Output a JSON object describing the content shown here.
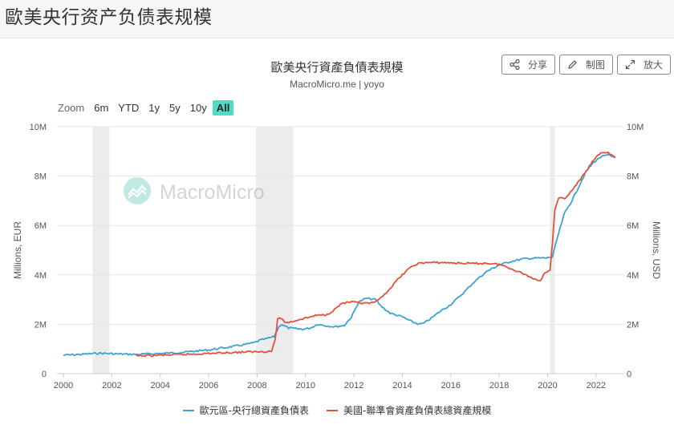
{
  "page": {
    "title": "歐美央行资产负债表规模"
  },
  "toolbar": {
    "share_label": "分享",
    "draw_label": "制图",
    "zoom_label": "放大"
  },
  "zoom": {
    "label": "Zoom",
    "options": [
      "6m",
      "YTD",
      "1y",
      "5y",
      "10y",
      "All"
    ],
    "active": "All"
  },
  "watermark": {
    "text": "MacroMicro"
  },
  "chart_data": {
    "type": "line",
    "title": "歐美央行資產負債表規模",
    "subtitle": "MacroMicro.me | yoyo",
    "x_range": [
      2000,
      2022.9
    ],
    "x_ticks": [
      2000,
      2002,
      2004,
      2006,
      2008,
      2010,
      2012,
      2014,
      2016,
      2018,
      2020,
      2022
    ],
    "y_left": {
      "label": "Millions, EUR",
      "range": [
        0,
        10000000
      ],
      "ticks": [
        "0",
        "2M",
        "4M",
        "6M",
        "8M",
        "10M"
      ]
    },
    "y_right": {
      "label": "Millions, USD",
      "range": [
        0,
        10000000
      ],
      "ticks": [
        "0",
        "2M",
        "4M",
        "6M",
        "8M",
        "10M"
      ]
    },
    "grid": "horizontal",
    "legend_position": "bottom",
    "recessions": [
      [
        2001.2,
        2001.9
      ],
      [
        2007.95,
        2009.5
      ],
      [
        2020.1,
        2020.3
      ]
    ],
    "series": [
      {
        "name": "歐元區-央行總資產負債表",
        "axis": "left",
        "color": "#3ba3d0",
        "points": [
          [
            2000.0,
            750000
          ],
          [
            2000.5,
            770000
          ],
          [
            2001.0,
            800000
          ],
          [
            2001.5,
            830000
          ],
          [
            2002.0,
            810000
          ],
          [
            2002.5,
            790000
          ],
          [
            2003.0,
            780000
          ],
          [
            2003.5,
            800000
          ],
          [
            2004.0,
            820000
          ],
          [
            2004.5,
            840000
          ],
          [
            2005.0,
            870000
          ],
          [
            2005.5,
            920000
          ],
          [
            2006.0,
            960000
          ],
          [
            2006.5,
            1030000
          ],
          [
            2007.0,
            1100000
          ],
          [
            2007.5,
            1180000
          ],
          [
            2007.9,
            1260000
          ],
          [
            2008.1,
            1350000
          ],
          [
            2008.4,
            1420000
          ],
          [
            2008.7,
            1500000
          ],
          [
            2008.9,
            1900000
          ],
          [
            2009.0,
            2000000
          ],
          [
            2009.3,
            1850000
          ],
          [
            2009.6,
            1820000
          ],
          [
            2009.9,
            1800000
          ],
          [
            2010.2,
            1850000
          ],
          [
            2010.5,
            2000000
          ],
          [
            2010.8,
            1950000
          ],
          [
            2011.2,
            1900000
          ],
          [
            2011.6,
            1950000
          ],
          [
            2011.9,
            2300000
          ],
          [
            2012.2,
            2900000
          ],
          [
            2012.5,
            3050000
          ],
          [
            2012.9,
            3000000
          ],
          [
            2013.1,
            2750000
          ],
          [
            2013.5,
            2450000
          ],
          [
            2014.0,
            2300000
          ],
          [
            2014.4,
            2100000
          ],
          [
            2014.7,
            2000000
          ],
          [
            2014.9,
            2050000
          ],
          [
            2015.2,
            2250000
          ],
          [
            2015.6,
            2550000
          ],
          [
            2016.0,
            2800000
          ],
          [
            2016.5,
            3250000
          ],
          [
            2017.0,
            3750000
          ],
          [
            2017.5,
            4150000
          ],
          [
            2018.0,
            4400000
          ],
          [
            2018.5,
            4550000
          ],
          [
            2019.0,
            4650000
          ],
          [
            2019.5,
            4680000
          ],
          [
            2019.9,
            4680000
          ],
          [
            2020.2,
            4720000
          ],
          [
            2020.4,
            5500000
          ],
          [
            2020.7,
            6500000
          ],
          [
            2021.0,
            7000000
          ],
          [
            2021.3,
            7600000
          ],
          [
            2021.6,
            8200000
          ],
          [
            2021.9,
            8550000
          ],
          [
            2022.2,
            8780000
          ],
          [
            2022.5,
            8850000
          ],
          [
            2022.8,
            8750000
          ]
        ]
      },
      {
        "name": "美國-聯準會資產負債表總資產規模",
        "axis": "right",
        "color": "#e0533a",
        "points": [
          [
            2003.0,
            720000
          ],
          [
            2003.5,
            730000
          ],
          [
            2004.0,
            750000
          ],
          [
            2004.5,
            760000
          ],
          [
            2005.0,
            780000
          ],
          [
            2005.5,
            800000
          ],
          [
            2006.0,
            820000
          ],
          [
            2006.5,
            840000
          ],
          [
            2007.0,
            860000
          ],
          [
            2007.5,
            880000
          ],
          [
            2008.0,
            890000
          ],
          [
            2008.6,
            910000
          ],
          [
            2008.75,
            1400000
          ],
          [
            2008.85,
            2200000
          ],
          [
            2009.0,
            2250000
          ],
          [
            2009.2,
            2050000
          ],
          [
            2009.4,
            2100000
          ],
          [
            2009.7,
            2180000
          ],
          [
            2010.0,
            2250000
          ],
          [
            2010.4,
            2350000
          ],
          [
            2010.9,
            2400000
          ],
          [
            2011.2,
            2600000
          ],
          [
            2011.5,
            2850000
          ],
          [
            2011.9,
            2900000
          ],
          [
            2012.3,
            2850000
          ],
          [
            2012.7,
            2850000
          ],
          [
            2013.0,
            2950000
          ],
          [
            2013.4,
            3350000
          ],
          [
            2013.8,
            3800000
          ],
          [
            2014.2,
            4200000
          ],
          [
            2014.6,
            4450000
          ],
          [
            2015.0,
            4500000
          ],
          [
            2015.5,
            4500000
          ],
          [
            2016.0,
            4490000
          ],
          [
            2016.5,
            4470000
          ],
          [
            2017.0,
            4460000
          ],
          [
            2017.5,
            4470000
          ],
          [
            2018.0,
            4430000
          ],
          [
            2018.5,
            4250000
          ],
          [
            2019.0,
            4050000
          ],
          [
            2019.4,
            3850000
          ],
          [
            2019.7,
            3780000
          ],
          [
            2019.9,
            4100000
          ],
          [
            2020.1,
            4200000
          ],
          [
            2020.2,
            5300000
          ],
          [
            2020.3,
            6600000
          ],
          [
            2020.45,
            7100000
          ],
          [
            2020.7,
            7100000
          ],
          [
            2021.0,
            7400000
          ],
          [
            2021.3,
            7800000
          ],
          [
            2021.6,
            8200000
          ],
          [
            2021.9,
            8650000
          ],
          [
            2022.2,
            8950000
          ],
          [
            2022.5,
            8950000
          ],
          [
            2022.8,
            8750000
          ]
        ]
      }
    ]
  }
}
